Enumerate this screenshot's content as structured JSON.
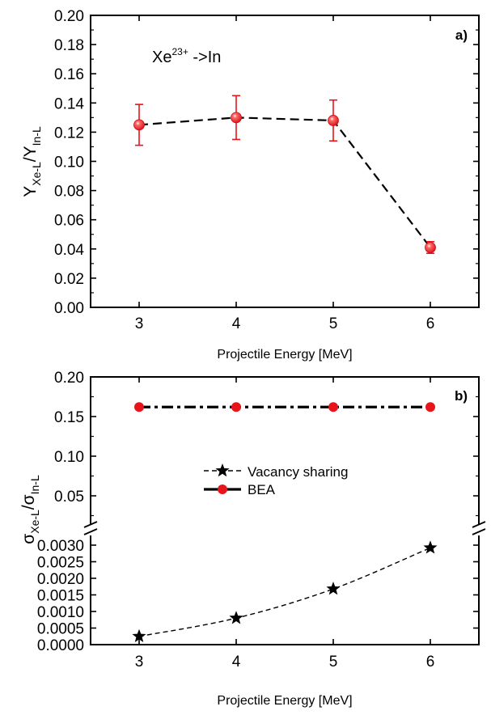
{
  "colors": {
    "accent": "#e8141b",
    "axis": "#000000"
  },
  "chart_data": [
    {
      "type": "line",
      "panel_label": "a)",
      "annotation": {
        "base": "Xe",
        "sup": "23+",
        "rest": " ->In"
      },
      "xlabel": "Projectile Energy [MeV]",
      "ylabel": {
        "main": "Y",
        "sub1": "Xe-L",
        "sep": "/Y",
        "sub2": "In-L"
      },
      "xlim": [
        2.5,
        6.5
      ],
      "ylim": [
        0,
        0.2
      ],
      "xticks": [
        3,
        4,
        5,
        6
      ],
      "yticks": [
        0.0,
        0.02,
        0.04,
        0.06,
        0.08,
        0.1,
        0.12,
        0.14,
        0.16,
        0.18,
        0.2
      ],
      "ytick_labels": [
        "0.00",
        "0.02",
        "0.04",
        "0.06",
        "0.08",
        "0.10",
        "0.12",
        "0.14",
        "0.16",
        "0.18",
        "0.20"
      ],
      "grid": false,
      "series": [
        {
          "marker": "circle",
          "line": "dashed",
          "x": [
            3,
            4,
            5,
            6
          ],
          "y": [
            0.125,
            0.13,
            0.128,
            0.041
          ],
          "yerr": [
            0.014,
            0.015,
            0.014,
            0.004
          ]
        }
      ]
    },
    {
      "type": "line",
      "panel_label": "b)",
      "xlabel": "Projectile Energy [MeV]",
      "ylabel": {
        "main": "σ",
        "sub1": "Xe-L",
        "sep": "/σ",
        "sub2": "In-L"
      },
      "xlim": [
        2.5,
        6.5
      ],
      "xticks": [
        3,
        4,
        5,
        6
      ],
      "axis_break": true,
      "ylim_upper": [
        0.02,
        0.2
      ],
      "yticks_upper": [
        0.05,
        0.1,
        0.15,
        0.2
      ],
      "ytick_labels_upper": [
        "0.05",
        "0.10",
        "0.15",
        "0.20"
      ],
      "ylim_lower": [
        0,
        0.0035
      ],
      "yticks_lower": [
        0.0,
        0.0005,
        0.001,
        0.0015,
        0.002,
        0.0025,
        0.003
      ],
      "ytick_labels_lower": [
        "0.0000",
        "0.0005",
        "0.0010",
        "0.0015",
        "0.0020",
        "0.0025",
        "0.0030"
      ],
      "grid": false,
      "legend_position": "center",
      "series": [
        {
          "name": "Vacancy sharing",
          "marker": "star",
          "line": "dashed",
          "segment": "lower",
          "x": [
            3,
            4,
            5,
            6
          ],
          "y": [
            0.00025,
            0.0008,
            0.00168,
            0.00292
          ]
        },
        {
          "name": "BEA",
          "marker": "circle",
          "line": "dashdot",
          "segment": "upper",
          "x": [
            3,
            4,
            5,
            6
          ],
          "y": [
            0.162,
            0.162,
            0.162,
            0.162
          ]
        }
      ]
    }
  ]
}
